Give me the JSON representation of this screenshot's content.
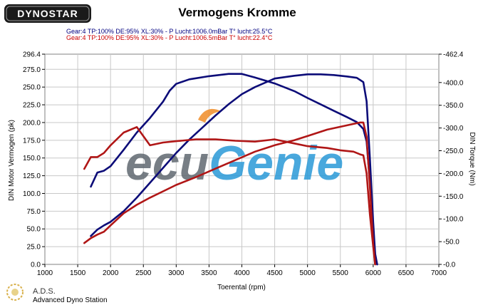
{
  "header": {
    "logo_text": "DYNOSTAR",
    "title": "Vermogens Kromme",
    "runs": [
      {
        "text": "Gear:4 TP:100% DE:95% XL:30%   - P Lucht:1006.0mBar T° lucht:25.5°C",
        "color": "#000080"
      },
      {
        "text": "Gear:4 TP:100% DE:95% XL:30%   - P Lucht:1006.5mBar T° lucht:22.4°C",
        "color": "#cc0000"
      }
    ]
  },
  "watermark": "ecuGenie",
  "footer": {
    "brand": "A.D.S.",
    "subtitle": "Advanced Dyno Station"
  },
  "colors": {
    "blue": "#0c0c78",
    "red": "#b01616",
    "grid": "#c8c8c8",
    "watermark_gray": "#606870",
    "watermark_blue": "#2a9ad8",
    "watermark_orange": "#f08c28"
  },
  "chart_data": {
    "type": "line",
    "title": "Vermogens Kromme",
    "xlabel": "Toerental (rpm)",
    "ylabel_left": "DIN Motor Vermogen (pk)",
    "ylabel_right": "DIN Torque (Nm)",
    "xlim": [
      1000,
      7000
    ],
    "x_ticks": [
      "1000",
      "1500",
      "2000",
      "2500",
      "3000",
      "3500",
      "4000",
      "4500",
      "5000",
      "5500",
      "6000",
      "6500",
      "7000"
    ],
    "ylim_left": [
      0,
      296.4
    ],
    "y_ticks_left": [
      "0.0",
      "25.0",
      "50.0",
      "75.0",
      "100.0",
      "125.0",
      "150.0",
      "175.0",
      "200.0",
      "225.0",
      "250.0",
      "275.0",
      "296.4"
    ],
    "ylim_right": [
      0,
      462.4
    ],
    "y_ticks_right": [
      "0.0",
      "50.0",
      "100.0",
      "150.0",
      "200.0",
      "250.0",
      "300.0",
      "350.0",
      "400.0",
      "462.4"
    ],
    "grid": true,
    "series": [
      {
        "axis": "right",
        "color": "#0c0c78",
        "x": [
          1700,
          1800,
          1900,
          2000,
          2200,
          2400,
          2600,
          2800,
          2900,
          3000,
          3200,
          3500,
          3800,
          4000,
          4200,
          4500,
          4800,
          5000,
          5200,
          5400,
          5600,
          5750,
          5850,
          5900,
          5950,
          6000,
          6030,
          6060
        ],
        "y": [
          171,
          202,
          206,
          216,
          252,
          290,
          322,
          358,
          382,
          397,
          407,
          414,
          419,
          419,
          411,
          398,
          381,
          366,
          352,
          338,
          324,
          313,
          298,
          270,
          180,
          80,
          20,
          0
        ]
      },
      {
        "axis": "left",
        "color": "#0c0c78",
        "x": [
          1700,
          1800,
          1900,
          2000,
          2200,
          2400,
          2600,
          2800,
          3000,
          3200,
          3400,
          3600,
          3800,
          4000,
          4200,
          4500,
          4800,
          5000,
          5200,
          5400,
          5600,
          5750,
          5850,
          5900,
          5950,
          6000,
          6030,
          6060
        ],
        "y": [
          40,
          49,
          55,
          60,
          75,
          94,
          115,
          136,
          157,
          176,
          193,
          210,
          226,
          240,
          250,
          262,
          266,
          268,
          268,
          267,
          265,
          263,
          257,
          230,
          150,
          60,
          15,
          0
        ]
      },
      {
        "axis": "right",
        "color": "#b01616",
        "x": [
          1600,
          1700,
          1800,
          1900,
          2000,
          2200,
          2400,
          2600,
          2800,
          3000,
          3300,
          3600,
          3900,
          4200,
          4500,
          4800,
          5000,
          5300,
          5500,
          5700,
          5800,
          5850,
          5900,
          5950,
          6000,
          6030
        ],
        "y": [
          210,
          236,
          236,
          245,
          262,
          290,
          302,
          262,
          268,
          271,
          275,
          275,
          272,
          270,
          275,
          266,
          260,
          256,
          251,
          248,
          242,
          240,
          200,
          110,
          40,
          0
        ]
      },
      {
        "axis": "left",
        "color": "#b01616",
        "x": [
          1600,
          1700,
          1800,
          1900,
          2000,
          2200,
          2400,
          2600,
          2800,
          3000,
          3300,
          3600,
          3900,
          4200,
          4500,
          4800,
          5000,
          5300,
          5500,
          5700,
          5800,
          5850,
          5900,
          5950,
          6000,
          6030
        ],
        "y": [
          30,
          37,
          42,
          46,
          55,
          72,
          84,
          94,
          103,
          112,
          123,
          135,
          147,
          159,
          168,
          175,
          181,
          190,
          194,
          198,
          200,
          200,
          180,
          110,
          30,
          0
        ]
      }
    ]
  }
}
